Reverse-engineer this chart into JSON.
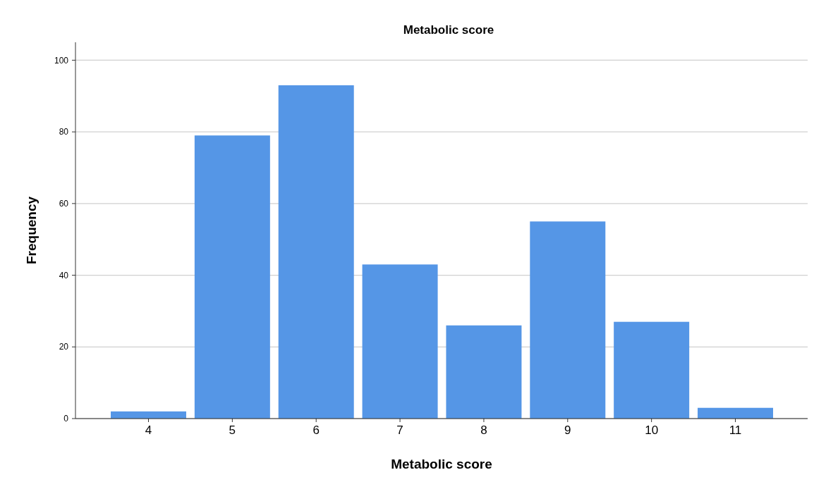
{
  "chart_data": {
    "type": "bar",
    "title": "Metabolic score",
    "xlabel": "Metabolic score",
    "ylabel": "Frequency",
    "categories": [
      "4",
      "5",
      "6",
      "7",
      "8",
      "9",
      "10",
      "11"
    ],
    "values": [
      2,
      79,
      93,
      43,
      26,
      55,
      27,
      3
    ],
    "color": "#5596e6",
    "ylim": [
      0,
      105
    ],
    "yticks": [
      0,
      20,
      40,
      60,
      80,
      100
    ],
    "grid": "y"
  }
}
